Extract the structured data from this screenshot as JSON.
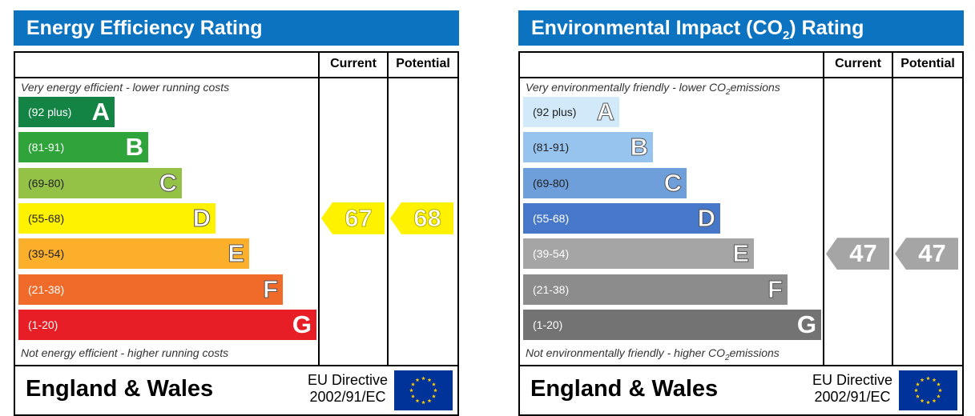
{
  "energy": {
    "title": "Energy Efficiency Rating",
    "col_current": "Current",
    "col_potential": "Potential",
    "top_caption": "Very energy efficient - lower running costs",
    "bottom_caption": "Not energy efficient - higher running costs",
    "bands": [
      {
        "range": "(92 plus)",
        "letter": "A",
        "color": "#138444"
      },
      {
        "range": "(81-91)",
        "letter": "B",
        "color": "#2ea43a"
      },
      {
        "range": "(69-80)",
        "letter": "C",
        "color": "#94c247"
      },
      {
        "range": "(55-68)",
        "letter": "D",
        "color": "#fef200"
      },
      {
        "range": "(39-54)",
        "letter": "E",
        "color": "#fbaf2b"
      },
      {
        "range": "(21-38)",
        "letter": "F",
        "color": "#f06a29"
      },
      {
        "range": "(1-20)",
        "letter": "G",
        "color": "#e71e25"
      }
    ],
    "current": {
      "value": "67",
      "band": "D",
      "color": "#fef200"
    },
    "potential": {
      "value": "68",
      "band": "D",
      "color": "#fef200"
    },
    "footer": "England & Wales",
    "directive_line1": "EU Directive",
    "directive_line2": "2002/91/EC"
  },
  "environment": {
    "title_part1": "Environmental Impact (CO",
    "title_sub": "2",
    "title_part2": ") Rating",
    "col_current": "Current",
    "col_potential": "Potential",
    "top_caption_part1": "Very environmentally friendly - lower CO",
    "top_caption_sub": "2",
    "top_caption_part2": "emissions",
    "bottom_caption_part1": "Not environmentally friendly - higher CO",
    "bottom_caption_sub": "2",
    "bottom_caption_part2": "emissions",
    "bands": [
      {
        "range": "(92 plus)",
        "letter": "A",
        "color": "#d1e9f9"
      },
      {
        "range": "(81-91)",
        "letter": "B",
        "color": "#97c4ef"
      },
      {
        "range": "(69-80)",
        "letter": "C",
        "color": "#6e9fdb"
      },
      {
        "range": "(55-68)",
        "letter": "D",
        "color": "#4677c8"
      },
      {
        "range": "(39-54)",
        "letter": "E",
        "color": "#a5a5a5"
      },
      {
        "range": "(21-38)",
        "letter": "F",
        "color": "#8c8c8c"
      },
      {
        "range": "(1-20)",
        "letter": "G",
        "color": "#737373"
      }
    ],
    "current": {
      "value": "47",
      "band": "E",
      "color": "#a5a5a5"
    },
    "potential": {
      "value": "47",
      "band": "E",
      "color": "#a5a5a5"
    },
    "footer": "England & Wales",
    "directive_line1": "EU Directive",
    "directive_line2": "2002/91/EC"
  },
  "icons": {
    "eu_flag": "eu-flag-icon"
  }
}
